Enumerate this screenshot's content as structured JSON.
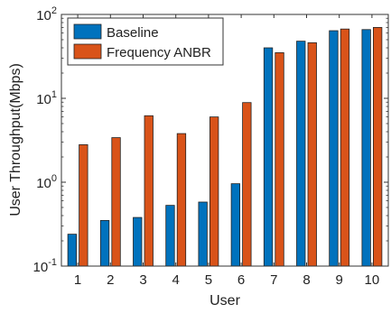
{
  "chart_data": {
    "type": "bar",
    "title": "",
    "xlabel": "User",
    "ylabel": "User Throughput(Mbps)",
    "yscale": "log",
    "ylim": [
      0.1,
      100
    ],
    "yticks": [
      0.1,
      1,
      10,
      100
    ],
    "ytick_labels": [
      {
        "base": "10",
        "exp": "-1"
      },
      {
        "base": "10",
        "exp": "0"
      },
      {
        "base": "10",
        "exp": "1"
      },
      {
        "base": "10",
        "exp": "2"
      }
    ],
    "categories": [
      "1",
      "2",
      "3",
      "4",
      "5",
      "6",
      "7",
      "8",
      "9",
      "10"
    ],
    "series": [
      {
        "name": "Baseline",
        "color": "#0072bd",
        "values": [
          0.24,
          0.35,
          0.38,
          0.53,
          0.58,
          0.96,
          40,
          48,
          64,
          66
        ]
      },
      {
        "name": "Frequency ANBR",
        "color": "#d95319",
        "values": [
          2.8,
          3.4,
          6.2,
          3.8,
          6.0,
          8.9,
          35,
          46,
          67,
          70
        ]
      }
    ],
    "legend_position": "top-left",
    "grid": false
  }
}
